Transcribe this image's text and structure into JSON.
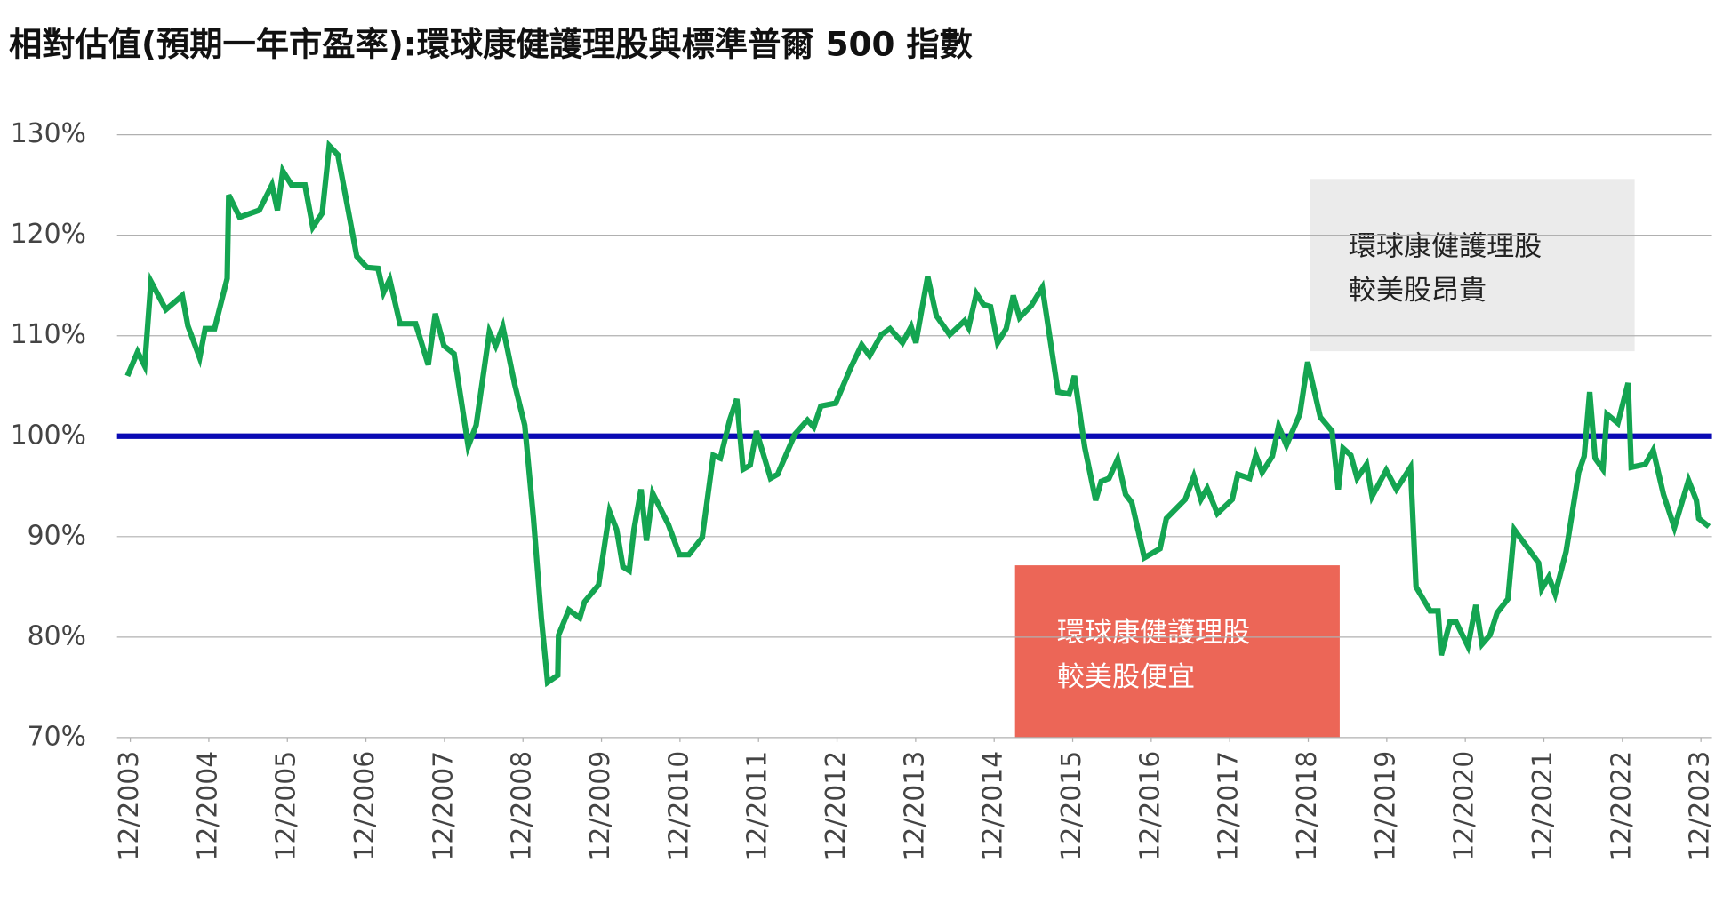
{
  "chart_data": {
    "type": "line",
    "title": "相對估值(預期一年市盈率):環球康健護理股與標準普爾 500 指數",
    "color": "#14a551",
    "x": [
      2003.88,
      2004.01,
      2004.1,
      2004.18,
      2004.37,
      2004.58,
      2004.65,
      2004.8,
      2004.87,
      2004.99,
      2005.15,
      2005.17,
      2005.31,
      2005.56,
      2005.72,
      2005.79,
      2005.86,
      2005.97,
      2006.14,
      2006.24,
      2006.36,
      2006.45,
      2006.56,
      2006.8,
      2006.93,
      2007.07,
      2007.14,
      2007.22,
      2007.35,
      2007.55,
      2007.71,
      2007.8,
      2007.91,
      2008.04,
      2008.22,
      2008.32,
      2008.49,
      2008.57,
      2008.66,
      2008.81,
      2008.94,
      2009.05,
      2009.15,
      2009.23,
      2009.36,
      2009.37,
      2009.5,
      2009.64,
      2009.7,
      2009.88,
      2010.02,
      2010.11,
      2010.19,
      2010.27,
      2010.33,
      2010.42,
      2010.49,
      2010.57,
      2010.77,
      2010.91,
      2011.03,
      2011.2,
      2011.34,
      2011.43,
      2011.55,
      2011.64,
      2011.72,
      2011.81,
      2011.89,
      2012.07,
      2012.16,
      2012.38,
      2012.54,
      2012.62,
      2012.71,
      2012.9,
      2013.09,
      2013.23,
      2013.33,
      2013.48,
      2013.59,
      2013.75,
      2013.86,
      2013.92,
      2014.07,
      2014.18,
      2014.35,
      2014.54,
      2014.59,
      2014.69,
      2014.78,
      2014.87,
      2014.96,
      2015.07,
      2015.16,
      2015.24,
      2015.39,
      2015.53,
      2015.73,
      2015.87,
      2015.94,
      2016.07,
      2016.21,
      2016.28,
      2016.38,
      2016.49,
      2016.59,
      2016.67,
      2016.83,
      2017.03,
      2017.11,
      2017.35,
      2017.46,
      2017.55,
      2017.63,
      2017.76,
      2017.95,
      2018.02,
      2018.17,
      2018.25,
      2018.33,
      2018.46,
      2018.54,
      2018.64,
      2018.81,
      2018.91,
      2019.07,
      2019.22,
      2019.3,
      2019.36,
      2019.46,
      2019.54,
      2019.66,
      2019.73,
      2019.91,
      2020.04,
      2020.22,
      2020.29,
      2020.47,
      2020.57,
      2020.61,
      2020.72,
      2020.8,
      2020.95,
      2021.05,
      2021.13,
      2021.23,
      2021.32,
      2021.46,
      2021.54,
      2021.85,
      2021.89,
      2021.98,
      2022.06,
      2022.2,
      2022.36,
      2022.43,
      2022.5,
      2022.57,
      2022.67,
      2022.72,
      2022.86,
      2022.99,
      2023.03,
      2023.21,
      2023.31,
      2023.44,
      2023.58,
      2023.76,
      2023.86,
      2023.89,
      2024.02
    ],
    "values": [
      106,
      108.4,
      107,
      115.4,
      112.6,
      114,
      111,
      107.8,
      110.7,
      110.7,
      115.7,
      124,
      121.8,
      122.5,
      125,
      122.5,
      126.4,
      125,
      125,
      120.8,
      122.2,
      128.9,
      128,
      117.9,
      116.8,
      116.7,
      114.3,
      115.6,
      111.2,
      111.2,
      107.1,
      112.2,
      109,
      108.2,
      99,
      101.1,
      110.4,
      109,
      110.9,
      105.2,
      101.1,
      91.8,
      81.9,
      75.5,
      76.2,
      80.2,
      82.7,
      81.9,
      83.5,
      85.2,
      92.5,
      90.7,
      87,
      86.6,
      90.7,
      94.7,
      89.6,
      94.3,
      91.2,
      88.2,
      88.2,
      89.9,
      98.1,
      97.8,
      101.6,
      103.7,
      96.7,
      97.1,
      100.5,
      95.8,
      96.2,
      100.2,
      101.6,
      100.9,
      103,
      103.3,
      106.8,
      109.1,
      108,
      110.1,
      110.7,
      109.3,
      110.9,
      109.3,
      115.9,
      112,
      110.1,
      111.5,
      110.8,
      114.2,
      113.1,
      112.9,
      109.3,
      110.7,
      114,
      111.8,
      113,
      114.8,
      104.4,
      104.2,
      106,
      98.9,
      93.6,
      95.5,
      95.8,
      97.7,
      94.2,
      93.4,
      87.9,
      88.8,
      91.8,
      93.7,
      96,
      93.7,
      94.8,
      92.3,
      93.7,
      96.2,
      95.8,
      98.1,
      96.4,
      98,
      101,
      99.1,
      102.2,
      107.4,
      101.9,
      100.5,
      94.7,
      98.8,
      98.1,
      95.8,
      97.2,
      94,
      96.6,
      94.7,
      96.9,
      85,
      82.6,
      82.6,
      78.2,
      81.5,
      81.5,
      79.1,
      83.2,
      79.3,
      80.2,
      82.4,
      83.8,
      90.7,
      87.4,
      84.8,
      86,
      84.3,
      88.5,
      96.4,
      98,
      104.4,
      97.8,
      96.7,
      102.2,
      101.3,
      105.3,
      96.9,
      97.2,
      98.6,
      94.2,
      90.9,
      95.6,
      93.6,
      91.8,
      91
    ],
    "xlim": [
      2003.75,
      2024.07
    ],
    "xticks": [
      {
        "value": 2003.917,
        "label": "12/2003"
      },
      {
        "value": 2004.917,
        "label": "12/2004"
      },
      {
        "value": 2005.917,
        "label": "12/2005"
      },
      {
        "value": 2006.917,
        "label": "12/2006"
      },
      {
        "value": 2007.917,
        "label": "12/2007"
      },
      {
        "value": 2008.917,
        "label": "12/2008"
      },
      {
        "value": 2009.917,
        "label": "12/2009"
      },
      {
        "value": 2010.917,
        "label": "12/2010"
      },
      {
        "value": 2011.917,
        "label": "12/2011"
      },
      {
        "value": 2012.917,
        "label": "12/2012"
      },
      {
        "value": 2013.917,
        "label": "12/2013"
      },
      {
        "value": 2014.917,
        "label": "12/2014"
      },
      {
        "value": 2015.917,
        "label": "12/2015"
      },
      {
        "value": 2016.917,
        "label": "12/2016"
      },
      {
        "value": 2017.917,
        "label": "12/2017"
      },
      {
        "value": 2018.917,
        "label": "12/2018"
      },
      {
        "value": 2019.917,
        "label": "12/2019"
      },
      {
        "value": 2020.917,
        "label": "12/2020"
      },
      {
        "value": 2021.917,
        "label": "12/2021"
      },
      {
        "value": 2022.917,
        "label": "12/2022"
      },
      {
        "value": 2023.917,
        "label": "12/2023"
      }
    ],
    "ylim": [
      70,
      130
    ],
    "yticks": [
      {
        "value": 70,
        "label": "70%"
      },
      {
        "value": 80,
        "label": "80%"
      },
      {
        "value": 90,
        "label": "90%"
      },
      {
        "value": 100,
        "label": "100%"
      },
      {
        "value": 110,
        "label": "110%"
      },
      {
        "value": 120,
        "label": "120%"
      },
      {
        "value": 130,
        "label": "130%"
      }
    ],
    "grid": true,
    "reference_line": {
      "value": 100,
      "color": "#0a0ab4"
    },
    "annotations": [
      {
        "lines": [
          "環球康健護理股",
          "較美股昂貴"
        ],
        "color": "#ebebeb",
        "text_color": "#222222"
      },
      {
        "lines": [
          "環球康健護理股",
          "較美股便宜"
        ],
        "color": "#ec6657",
        "text_color": "#ffffff"
      }
    ]
  }
}
